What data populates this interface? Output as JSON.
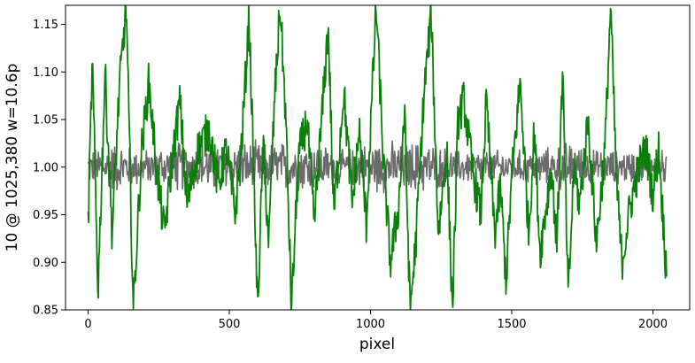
{
  "chart_data": {
    "type": "line",
    "title": "",
    "xlabel": "pixel",
    "ylabel": "10 @ 1025,380 w=10.6p",
    "xlim": [
      -80,
      2130
    ],
    "ylim": [
      0.85,
      1.17
    ],
    "xticks": [
      0,
      500,
      1000,
      1500,
      2000
    ],
    "yticks": [
      0.85,
      0.9,
      0.95,
      1.0,
      1.05,
      1.1,
      1.15
    ],
    "xtick_labels": [
      "0",
      "500",
      "1000",
      "1500",
      "2000"
    ],
    "ytick_labels": [
      "0.85",
      "0.90",
      "0.95",
      "1.00",
      "1.05",
      "1.10",
      "1.15"
    ],
    "grid": false,
    "series": [
      {
        "color": "#6b6b6b",
        "x_start": 0,
        "x_end": 2048,
        "n_points": 1024,
        "baseline": 1.0,
        "x": [
          0,
          100,
          200,
          300,
          400,
          500,
          600,
          700,
          800,
          900,
          1000,
          1100,
          1200,
          1300,
          1400,
          1500,
          1600,
          1700,
          1800,
          1900,
          2000,
          2048
        ],
        "max": [
          1.02,
          1.03,
          1.02,
          1.03,
          1.05,
          1.03,
          1.04,
          1.04,
          1.03,
          1.02,
          1.03,
          1.03,
          1.03,
          1.02,
          1.02,
          1.02,
          1.02,
          1.03,
          1.02,
          1.02,
          1.02,
          1.02
        ],
        "min": [
          0.98,
          0.97,
          0.98,
          0.97,
          0.97,
          0.97,
          0.97,
          0.97,
          0.97,
          0.98,
          0.97,
          0.97,
          0.97,
          0.98,
          0.97,
          0.98,
          0.97,
          0.97,
          0.97,
          0.98,
          0.96,
          0.97
        ]
      },
      {
        "color": "#0a7f0a",
        "x_start": 0,
        "x_end": 2048,
        "n_points": 1024,
        "x": [
          0,
          15,
          35,
          60,
          85,
          110,
          135,
          160,
          190,
          215,
          245,
          270,
          295,
          325,
          350,
          390,
          430,
          460,
          490,
          520,
          545,
          570,
          600,
          620,
          640,
          660,
          680,
          700,
          720,
          745,
          775,
          800,
          825,
          850,
          870,
          905,
          935,
          960,
          985,
          1000,
          1020,
          1045,
          1070,
          1100,
          1120,
          1140,
          1160,
          1190,
          1215,
          1240,
          1270,
          1290,
          1310,
          1330,
          1360,
          1390,
          1410,
          1440,
          1460,
          1480,
          1500,
          1530,
          1560,
          1580,
          1600,
          1640,
          1660,
          1680,
          1700,
          1720,
          1740,
          1770,
          1800,
          1830,
          1850,
          1870,
          1890,
          1920,
          1950,
          1975,
          2000,
          2020,
          2045
        ],
        "y": [
          0.94,
          1.11,
          0.87,
          1.1,
          0.93,
          1.08,
          1.17,
          0.85,
          1.02,
          1.09,
          0.99,
          0.93,
          1.0,
          1.07,
          0.96,
          1.02,
          1.04,
          0.98,
          1.02,
          0.95,
          1.03,
          1.16,
          0.85,
          1.02,
          0.92,
          1.07,
          1.17,
          1.05,
          0.85,
          1.01,
          1.05,
          0.94,
          1.04,
          1.15,
          0.95,
          1.08,
          0.96,
          1.04,
          0.94,
          1.04,
          1.17,
          1.01,
          0.9,
          0.96,
          1.06,
          0.85,
          0.92,
          1.08,
          1.16,
          0.93,
          1.02,
          0.85,
          1.05,
          1.07,
          1.0,
          0.95,
          1.07,
          0.93,
          0.98,
          0.88,
          0.99,
          1.09,
          0.93,
          1.04,
          0.91,
          1.0,
          0.92,
          1.1,
          0.86,
          1.0,
          0.96,
          1.05,
          0.92,
          1.02,
          1.17,
          0.99,
          0.9,
          0.96,
          1.0,
          1.02,
          0.97,
          1.02,
          0.9
        ]
      }
    ]
  }
}
